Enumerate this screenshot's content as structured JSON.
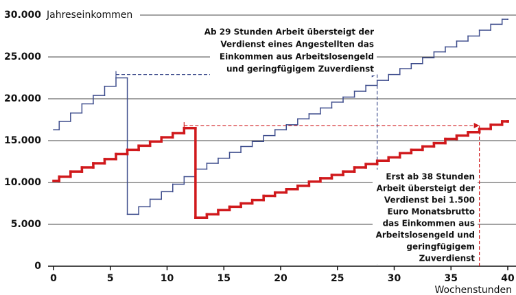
{
  "chart_data": {
    "type": "step",
    "y_axis_title": "Jahreseinkommen",
    "x_axis_title": "Wochenstunden",
    "xlim": [
      0,
      40
    ],
    "xticks": [
      0,
      5,
      10,
      15,
      20,
      25,
      30,
      35,
      40
    ],
    "ylim": [
      0,
      30000
    ],
    "yticks": [
      0,
      {
        "value": 5000,
        "label": "5.000"
      },
      {
        "value": 10000,
        "label": "10.000"
      },
      {
        "value": 15000,
        "label": "15.000"
      },
      {
        "value": 20000,
        "label": "20.000"
      },
      {
        "value": 25000,
        "label": "25.000"
      },
      {
        "value": 30000,
        "label": "30.000"
      }
    ],
    "grid": true,
    "x": [
      0,
      0.5,
      1.5,
      2.5,
      3.5,
      4.5,
      5.5,
      6.5,
      7.5,
      8.5,
      9.5,
      10.5,
      11.5,
      12.5,
      13.5,
      14.5,
      15.5,
      16.5,
      17.5,
      18.5,
      19.5,
      20.5,
      21.5,
      22.5,
      23.5,
      24.5,
      25.5,
      26.5,
      27.5,
      28.5,
      29.5,
      30.5,
      31.5,
      32.5,
      33.5,
      34.5,
      35.5,
      36.5,
      37.5,
      38.5,
      39.5,
      40
    ],
    "series": [
      {
        "color": "#3d4c8c",
        "width": 1.5,
        "values": [
          16300,
          17300,
          18300,
          19400,
          20400,
          21500,
          22500,
          6200,
          7100,
          8000,
          8900,
          9800,
          10700,
          11600,
          12300,
          12900,
          13600,
          14300,
          14900,
          15600,
          16300,
          16900,
          17600,
          18200,
          18900,
          19600,
          20200,
          20900,
          21600,
          22200,
          22900,
          23600,
          24200,
          24900,
          25600,
          26200,
          26900,
          27500,
          28200,
          28900,
          29500,
          29500
        ]
      },
      {
        "color": "#d0191c",
        "width": 3.5,
        "values": [
          10200,
          10700,
          11300,
          11800,
          12300,
          12800,
          13400,
          13900,
          14400,
          14900,
          15400,
          15900,
          16500,
          5800,
          6200,
          6700,
          7100,
          7500,
          7900,
          8400,
          8800,
          9200,
          9600,
          10100,
          10500,
          10900,
          11300,
          11800,
          12200,
          12600,
          13000,
          13500,
          13900,
          14300,
          14700,
          15200,
          15600,
          16000,
          16400,
          16900,
          17300,
          17300
        ]
      }
    ],
    "annotations": [
      {
        "color": "#3d4c8c",
        "x_start": 5.5,
        "x": 28.5,
        "y": 22900,
        "lines": [
          "Ab 29 Stunden Arbeit übersteigt der",
          "Verdienst eines Angestellten das",
          "Einkommen aus Arbeitslosengeld",
          "und geringfügigem Zuverdienst"
        ]
      },
      {
        "color": "#d0191c",
        "x_start": 11.5,
        "x": 37.5,
        "y": 16800,
        "lines": [
          "Erst ab 38 Stunden",
          "Arbeit übersteigt der",
          "Verdienst bei 1.500",
          "Euro Monatsbrutto",
          "das Einkommen aus",
          "Arbeitslosengeld und",
          "geringfügigem",
          "Zuverdienst"
        ]
      }
    ]
  }
}
